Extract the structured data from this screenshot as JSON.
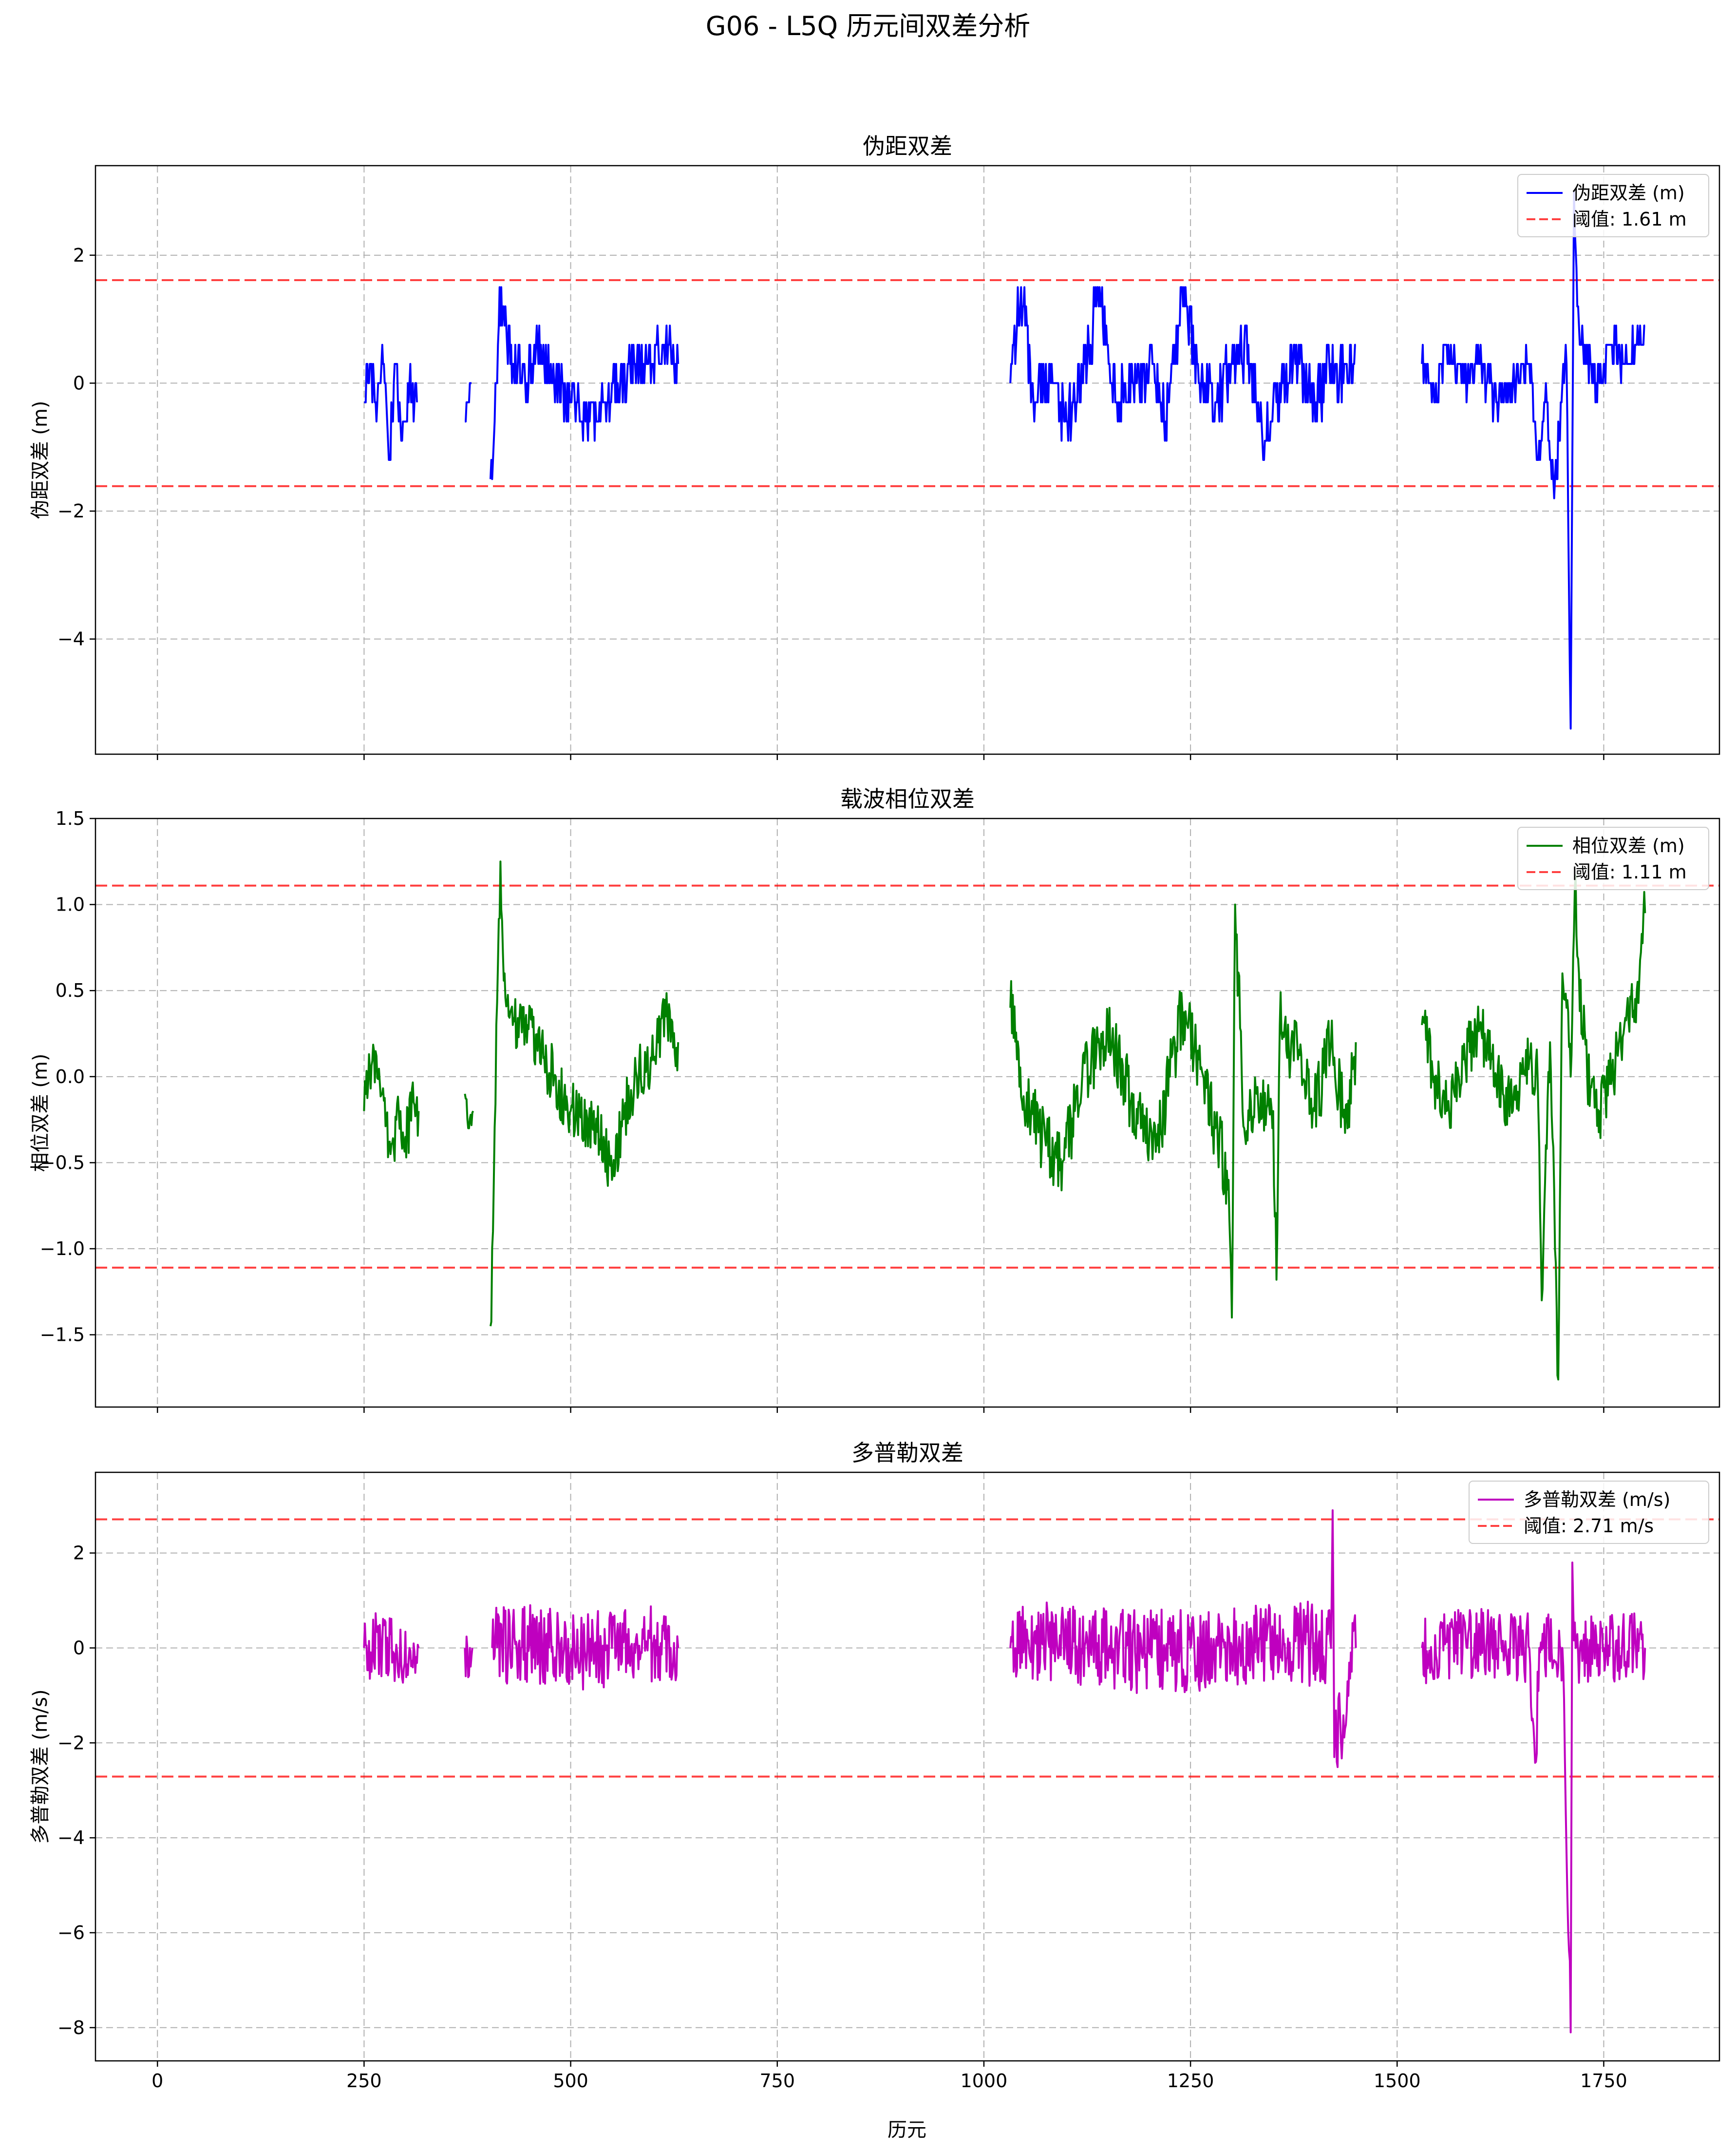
{
  "figure": {
    "suptitle": "G06 - L5Q 历元间双差分析",
    "xlabel": "历元"
  },
  "chart_data": [
    {
      "type": "line",
      "title": "伪距双差",
      "xlabel": "",
      "ylabel": "伪距双差 (m)",
      "xlim": [
        -75,
        1890
      ],
      "ylim": [
        -5.8,
        3.4
      ],
      "x_ticks": [
        0,
        250,
        500,
        750,
        1000,
        1250,
        1500,
        1750
      ],
      "y_ticks": [
        -4,
        -2,
        0,
        2
      ],
      "grid": true,
      "legend_position": "top-right",
      "series": [
        {
          "name": "伪距双差 (m)",
          "color": "#0000ff",
          "noise_step": 0.3,
          "segments": [
            {
              "x": [
                250,
                258,
                265,
                272,
                280,
                288,
                296,
                305,
                314
              ],
              "y": [
                -0.3,
                0.3,
                -0.6,
                0.6,
                -1.2,
                0.3,
                -0.9,
                0.0,
                -0.3
              ],
              "amp": 0.6
            },
            {
              "x": [
                372,
                380
              ],
              "y": [
                -0.6,
                0.0
              ],
              "amp": 0.1
            },
            {
              "x": [
                403,
                408,
                414,
                420,
                430,
                445,
                460,
                480,
                500,
                520,
                540,
                560,
                580,
                600,
                615,
                630
              ],
              "y": [
                -1.5,
                -0.6,
                1.5,
                0.9,
                0.3,
                0.0,
                0.6,
                0.0,
                -0.3,
                -0.6,
                -0.3,
                0.0,
                0.3,
                0.3,
                0.6,
                0.3
              ],
              "amp": 0.8
            },
            {
              "x": [
                1032,
                1045,
                1060,
                1080,
                1100,
                1120,
                1140,
                1160,
                1180,
                1200,
                1220,
                1240,
                1260,
                1280,
                1300,
                1320,
                1340,
                1360,
                1380,
                1400,
                1420,
                1440,
                1450
              ],
              "y": [
                0.0,
                1.5,
                -0.3,
                0.3,
                -0.6,
                0.0,
                1.5,
                -0.3,
                0.0,
                0.3,
                -0.6,
                1.5,
                0.0,
                -0.3,
                0.3,
                0.6,
                -0.9,
                0.0,
                0.3,
                -0.3,
                0.3,
                0.0,
                0.6
              ],
              "amp": 0.9
            },
            {
              "x": [
                1530,
                1545,
                1560,
                1580,
                1600,
                1620,
                1640,
                1660,
                1670,
                1680,
                1690,
                1700,
                1705,
                1710,
                1714,
                1718,
                1722,
                1730,
                1745,
                1760,
                1775,
                1790,
                1800
              ],
              "y": [
                0.3,
                -0.3,
                0.6,
                0.0,
                0.3,
                -0.3,
                0.0,
                0.3,
                -1.2,
                0.0,
                -1.8,
                0.0,
                0.3,
                -5.4,
                3.0,
                1.2,
                0.6,
                0.3,
                0.0,
                0.6,
                0.3,
                0.6,
                0.9
              ],
              "amp": 0.6
            }
          ]
        }
      ],
      "thresholds": {
        "label": "阈值: 1.61 m",
        "value": 1.61,
        "color": "#ff0000"
      }
    },
    {
      "type": "line",
      "title": "载波相位双差",
      "xlabel": "",
      "ylabel": "相位双差 (m)",
      "xlim": [
        -75,
        1890
      ],
      "ylim": [
        -1.92,
        1.5
      ],
      "x_ticks": [
        0,
        250,
        500,
        750,
        1000,
        1250,
        1500,
        1750
      ],
      "y_ticks": [
        -1.5,
        -1.0,
        -0.5,
        0.0,
        0.5,
        1.0,
        1.5
      ],
      "grid": true,
      "legend_position": "top-right",
      "series": [
        {
          "name": "相位双差 (m)",
          "color": "#008000",
          "noise_step": 0,
          "segments": [
            {
              "x": [
                250,
                262,
                272,
                282,
                292,
                300,
                310,
                316
              ],
              "y": [
                -0.2,
                0.15,
                -0.1,
                -0.45,
                -0.2,
                -0.35,
                -0.15,
                -0.2
              ],
              "amp": 0.35
            },
            {
              "x": [
                372,
                377,
                382
              ],
              "y": [
                -0.1,
                -0.3,
                -0.2
              ],
              "amp": 0.1
            },
            {
              "x": [
                403,
                406,
                410,
                415,
                420,
                430,
                445,
                460,
                480,
                500,
                520,
                540,
                550,
                565,
                580,
                600,
                615,
                630
              ],
              "y": [
                -1.45,
                -0.9,
                0.3,
                1.25,
                0.6,
                0.3,
                0.3,
                0.15,
                0.0,
                -0.2,
                -0.25,
                -0.35,
                -0.6,
                -0.2,
                0.0,
                0.1,
                0.35,
                0.2
              ],
              "amp": 0.35
            },
            {
              "x": [
                1032,
                1040,
                1055,
                1075,
                1095,
                1110,
                1130,
                1150,
                1170,
                1190,
                1210,
                1225,
                1240,
                1260,
                1280,
                1296,
                1300,
                1304,
                1315,
                1330,
                1350,
                1354,
                1358,
                1380,
                1400,
                1420,
                1440,
                1450
              ],
              "y": [
                0.4,
                0.1,
                -0.2,
                -0.4,
                -0.5,
                -0.2,
                0.1,
                0.3,
                0.0,
                -0.3,
                -0.4,
                0.0,
                0.4,
                0.1,
                -0.3,
                -0.6,
                -1.4,
                1.0,
                -0.3,
                -0.1,
                -0.2,
                -1.18,
                0.3,
                0.1,
                -0.2,
                0.2,
                -0.3,
                0.2
              ],
              "amp": 0.4
            },
            {
              "x": [
                1530,
                1545,
                1560,
                1580,
                1600,
                1620,
                1640,
                1660,
                1670,
                1675,
                1685,
                1695,
                1700,
                1705,
                1710,
                1715,
                1720,
                1730,
                1745,
                1760,
                1775,
                1790,
                1800
              ],
              "y": [
                0.3,
                0.0,
                -0.2,
                0.1,
                0.3,
                0.0,
                -0.2,
                0.1,
                0.0,
                -1.3,
                0.2,
                -1.76,
                0.6,
                0.4,
                0.0,
                1.1,
                0.6,
                0.0,
                -0.2,
                0.0,
                0.3,
                0.5,
                0.95
              ],
              "amp": 0.35
            }
          ]
        }
      ],
      "thresholds": {
        "label": "阈值: 1.11 m",
        "value": 1.11,
        "color": "#ff0000"
      }
    },
    {
      "type": "line",
      "title": "多普勒双差",
      "xlabel": "历元",
      "ylabel": "多普勒双差 (m/s)",
      "xlim": [
        -75,
        1890
      ],
      "ylim": [
        -8.7,
        3.7
      ],
      "x_ticks": [
        0,
        250,
        500,
        750,
        1000,
        1250,
        1500,
        1750
      ],
      "y_ticks": [
        -8,
        -6,
        -4,
        -2,
        0,
        2
      ],
      "grid": true,
      "legend_position": "top-right",
      "series": [
        {
          "name": "多普勒双差 (m/s)",
          "color": "#bf00bf",
          "noise_step": 0,
          "segments": [
            {
              "x": [
                250,
                270,
                290,
                305,
                316
              ],
              "y": [
                0.0,
                0.1,
                -0.1,
                0.0,
                0.0
              ],
              "amp": 1.4
            },
            {
              "x": [
                372,
                375,
                378,
                381
              ],
              "y": [
                0.0,
                0.0,
                0.0,
                0.0
              ],
              "amp": 1.4
            },
            {
              "x": [
                405,
                450,
                500,
                550,
                600,
                630
              ],
              "y": [
                0.0,
                0.1,
                -0.1,
                0.0,
                0.1,
                0.0
              ],
              "amp": 1.7
            },
            {
              "x": [
                1032,
                1100,
                1200,
                1300,
                1400,
                1420,
                1422,
                1424,
                1450
              ],
              "y": [
                0.0,
                0.1,
                -0.1,
                0.0,
                0.1,
                0.0,
                2.9,
                -2.3,
                0.0
              ],
              "amp": 1.8
            },
            {
              "x": [
                1530,
                1600,
                1660,
                1668,
                1672,
                1700,
                1710,
                1712,
                1716,
                1750,
                1800
              ],
              "y": [
                0.0,
                0.1,
                0.0,
                -2.4,
                0.0,
                0.0,
                -8.1,
                1.8,
                0.0,
                0.0,
                0.0
              ],
              "amp": 1.5
            }
          ]
        }
      ],
      "thresholds": {
        "label": "阈值: 2.71 m/s",
        "value": 2.71,
        "color": "#ff0000"
      }
    }
  ]
}
